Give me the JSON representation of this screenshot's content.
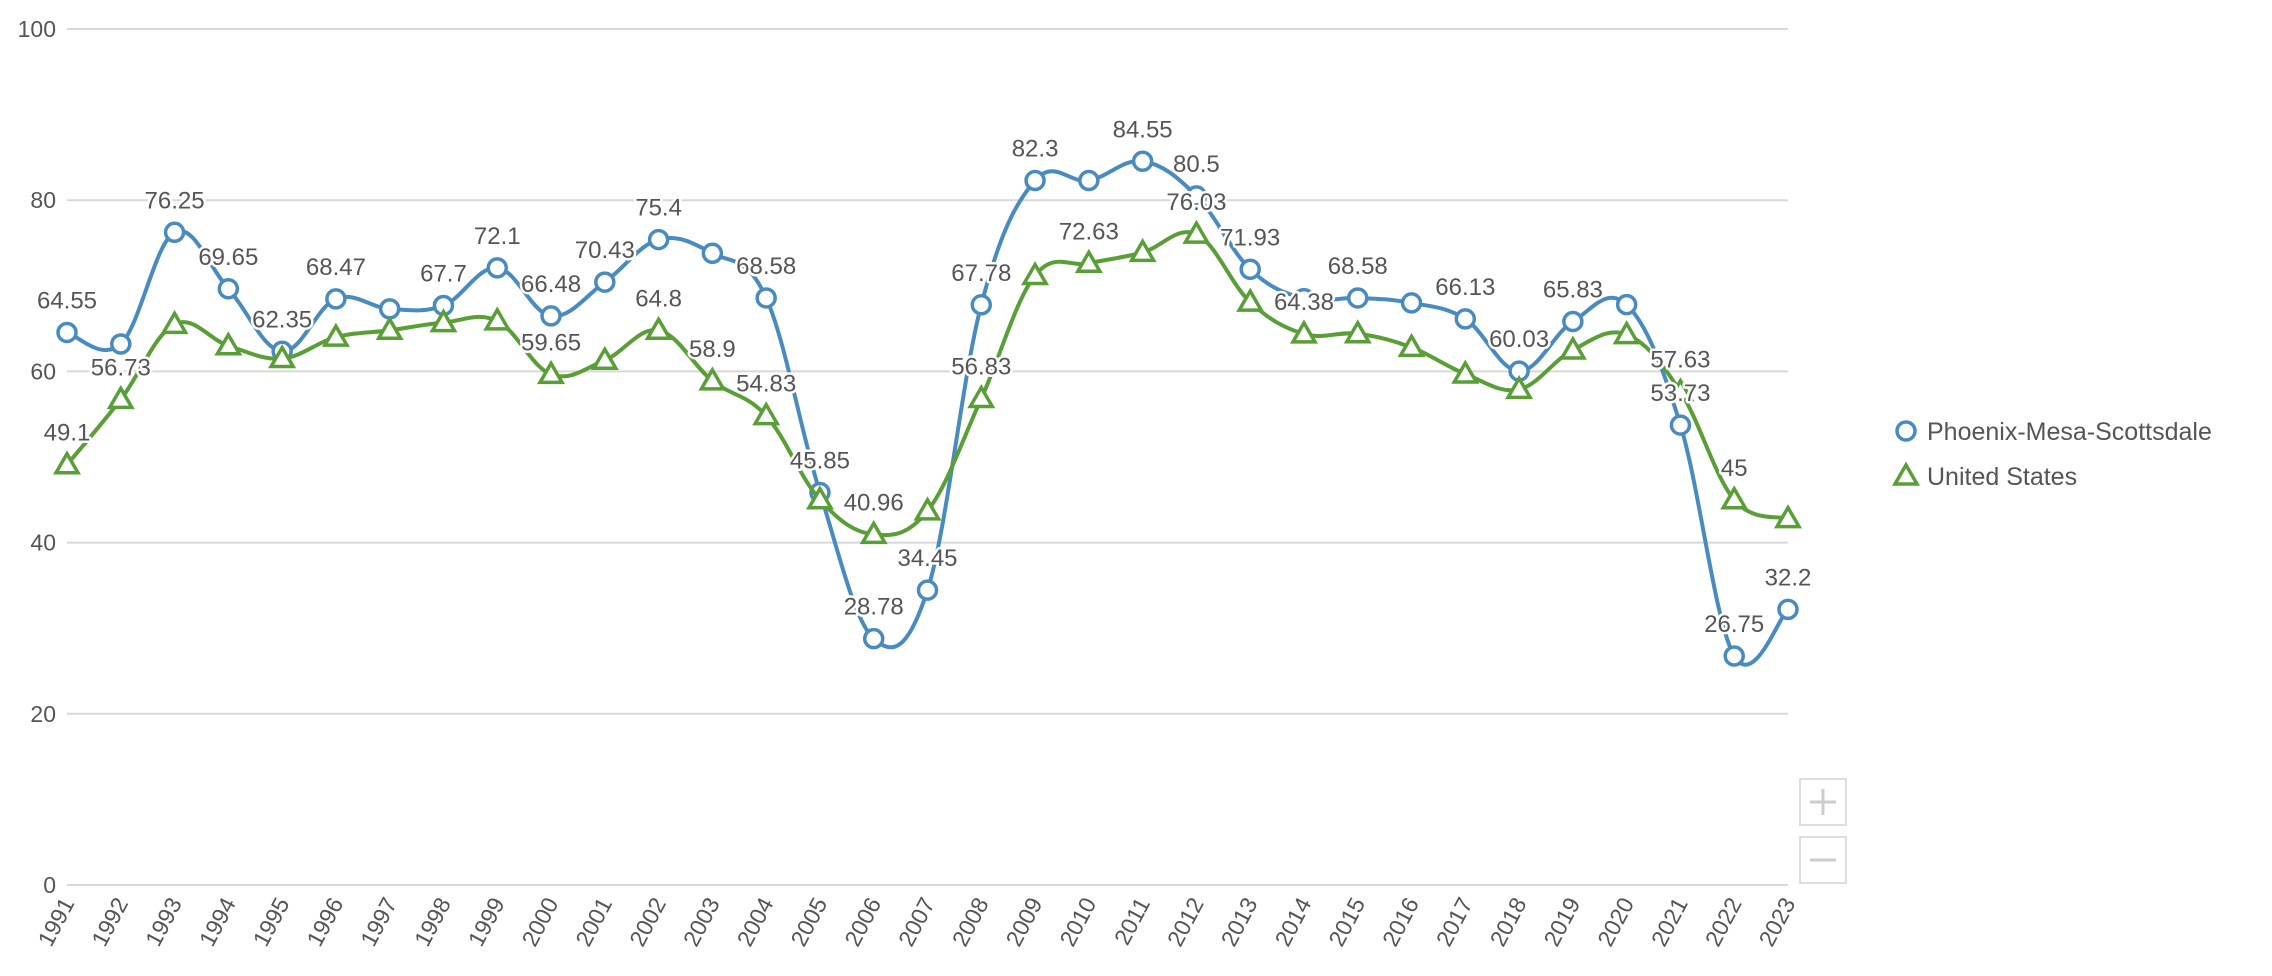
{
  "chart_data": {
    "type": "line",
    "categories": [
      "1991",
      "1992",
      "1993",
      "1994",
      "1995",
      "1996",
      "1997",
      "1998",
      "1999",
      "2000",
      "2001",
      "2002",
      "2003",
      "2004",
      "2005",
      "2006",
      "2007",
      "2008",
      "2009",
      "2010",
      "2011",
      "2012",
      "2013",
      "2014",
      "2015",
      "2016",
      "2017",
      "2018",
      "2019",
      "2020",
      "2021",
      "2022",
      "2023"
    ],
    "ylim": [
      0,
      100
    ],
    "yticks": [
      0,
      20,
      40,
      60,
      80,
      100
    ],
    "grid": true,
    "legend": "right",
    "series": [
      {
        "name": "Phoenix-Mesa-Scottsdale",
        "color": "#4a8bbf",
        "marker": "circle",
        "values": [
          64.55,
          63.2,
          76.25,
          69.65,
          62.35,
          68.47,
          67.3,
          67.7,
          72.1,
          66.48,
          70.43,
          75.4,
          73.8,
          68.58,
          45.85,
          28.78,
          34.45,
          67.78,
          82.3,
          82.3,
          84.55,
          80.5,
          71.93,
          68.5,
          68.58,
          68.0,
          66.13,
          60.03,
          65.83,
          67.8,
          53.73,
          26.75,
          32.2
        ],
        "value_labels": [
          "64.55",
          null,
          "76.25",
          "69.65",
          "62.35",
          "68.47",
          null,
          "67.7",
          "72.1",
          "66.48",
          "70.43",
          "75.4",
          null,
          "68.58",
          "45.85",
          "28.78",
          "34.45",
          "67.78",
          "82.3",
          null,
          "84.55",
          "80.5",
          "71.93",
          null,
          "68.58",
          null,
          "66.13",
          "60.03",
          "65.83",
          null,
          "53.73",
          "26.75",
          "32.2"
        ]
      },
      {
        "name": "United States",
        "color": "#5a9e37",
        "marker": "triangle",
        "values": [
          49.1,
          56.73,
          65.5,
          63.0,
          61.5,
          64.0,
          64.8,
          65.7,
          65.9,
          59.65,
          61.3,
          64.8,
          58.9,
          54.83,
          45.0,
          40.96,
          43.7,
          56.83,
          71.2,
          72.63,
          73.9,
          76.03,
          68.1,
          64.38,
          64.4,
          62.8,
          59.7,
          57.9,
          62.5,
          64.3,
          57.63,
          45,
          42.8
        ],
        "value_labels": [
          "49.1",
          "56.73",
          null,
          null,
          null,
          null,
          null,
          null,
          null,
          "59.65",
          null,
          "64.8",
          "58.9",
          "54.83",
          null,
          "40.96",
          null,
          "56.83",
          null,
          "72.63",
          null,
          "76.03",
          null,
          "64.38",
          null,
          null,
          null,
          null,
          null,
          null,
          "57.63",
          "45",
          null
        ]
      }
    ]
  }
}
